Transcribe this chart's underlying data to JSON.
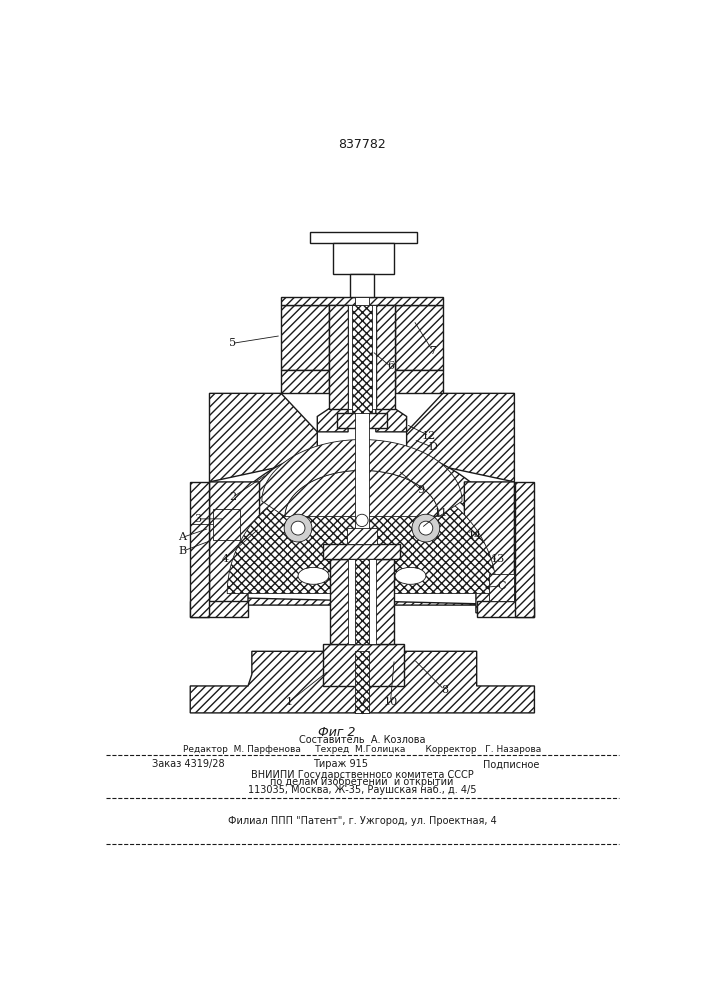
{
  "patent_number": "837782",
  "fig_caption": "Фиг 2",
  "bg_color": "#ffffff",
  "line_color": "#1a1a1a",
  "footer_lines": [
    "Составитель  А. Козлова",
    "Редактор  М. Парфенова     Техред  М.Голицка       Корректор   Г. Назарова",
    "Заказ 4319/28",
    "Тираж 915",
    "Подписное",
    "ВНИИПИ Государственного комитета СССР",
    "по делам изобретений  и открытий",
    "113035, Москва, Ж-35, Раушская наб., д. 4/5",
    "Филиал ППП \"Патент\", г. Ужгород, ул. Проектная, 4"
  ]
}
